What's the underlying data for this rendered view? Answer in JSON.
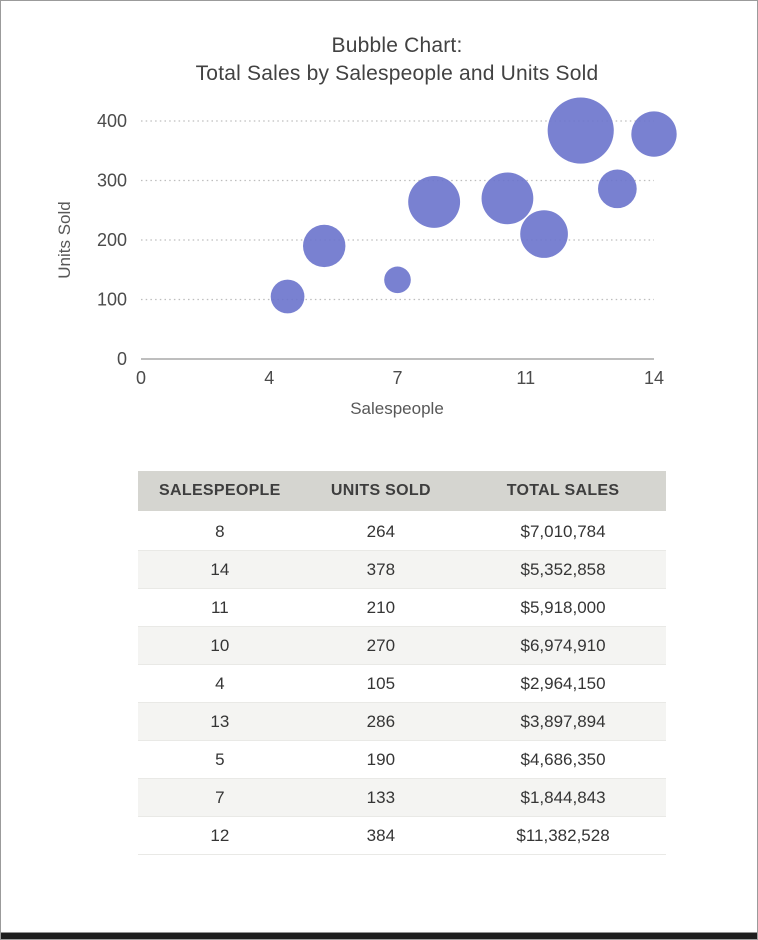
{
  "window": {
    "background": "#ffffff",
    "frame_border_color": "#9b9b9b",
    "bottom_bar_color": "#1e1e1e"
  },
  "chart": {
    "title_line1": "Bubble Chart:",
    "title_line2": "Total Sales by Salespeople and Units Sold"
  },
  "chart_data": {
    "type": "scatter",
    "subtype": "bubble",
    "title": "Bubble Chart: Total Sales by Salespeople and Units Sold",
    "xlabel": "Salespeople",
    "ylabel": "Units Sold",
    "xlim": [
      0,
      14
    ],
    "ylim": [
      0,
      400
    ],
    "x_tick_values": [
      0,
      3.5,
      7,
      10.5,
      14
    ],
    "x_tick_labels": [
      "0",
      "4",
      "7",
      "11",
      "14"
    ],
    "y_tick_values": [
      0,
      100,
      200,
      300,
      400
    ],
    "y_tick_labels": [
      "0",
      "100",
      "200",
      "300",
      "400"
    ],
    "grid": "horizontal dotted gridlines, gray",
    "legend": "none",
    "bubble_color": "#6A73CC",
    "size_encoding": "bubble area proportional to total_sales",
    "points": [
      {
        "salespeople": 8,
        "units_sold": 264,
        "total_sales": 7010784
      },
      {
        "salespeople": 14,
        "units_sold": 378,
        "total_sales": 5352858
      },
      {
        "salespeople": 11,
        "units_sold": 210,
        "total_sales": 5918000
      },
      {
        "salespeople": 10,
        "units_sold": 270,
        "total_sales": 6974910
      },
      {
        "salespeople": 4,
        "units_sold": 105,
        "total_sales": 2964150
      },
      {
        "salespeople": 13,
        "units_sold": 286,
        "total_sales": 3897894
      },
      {
        "salespeople": 5,
        "units_sold": 190,
        "total_sales": 4686350
      },
      {
        "salespeople": 7,
        "units_sold": 133,
        "total_sales": 1844843
      },
      {
        "salespeople": 12,
        "units_sold": 384,
        "total_sales": 11382528
      }
    ]
  },
  "table": {
    "headers": [
      "SALESPEOPLE",
      "UNITS SOLD",
      "TOTAL SALES"
    ],
    "rows": [
      [
        "8",
        "264",
        "$7,010,784"
      ],
      [
        "14",
        "378",
        "$5,352,858"
      ],
      [
        "11",
        "210",
        "$5,918,000"
      ],
      [
        "10",
        "270",
        "$6,974,910"
      ],
      [
        "4",
        "105",
        "$2,964,150"
      ],
      [
        "13",
        "286",
        "$3,897,894"
      ],
      [
        "5",
        "190",
        "$4,686,350"
      ],
      [
        "7",
        "133",
        "$1,844,843"
      ],
      [
        "12",
        "384",
        "$11,382,528"
      ]
    ]
  }
}
